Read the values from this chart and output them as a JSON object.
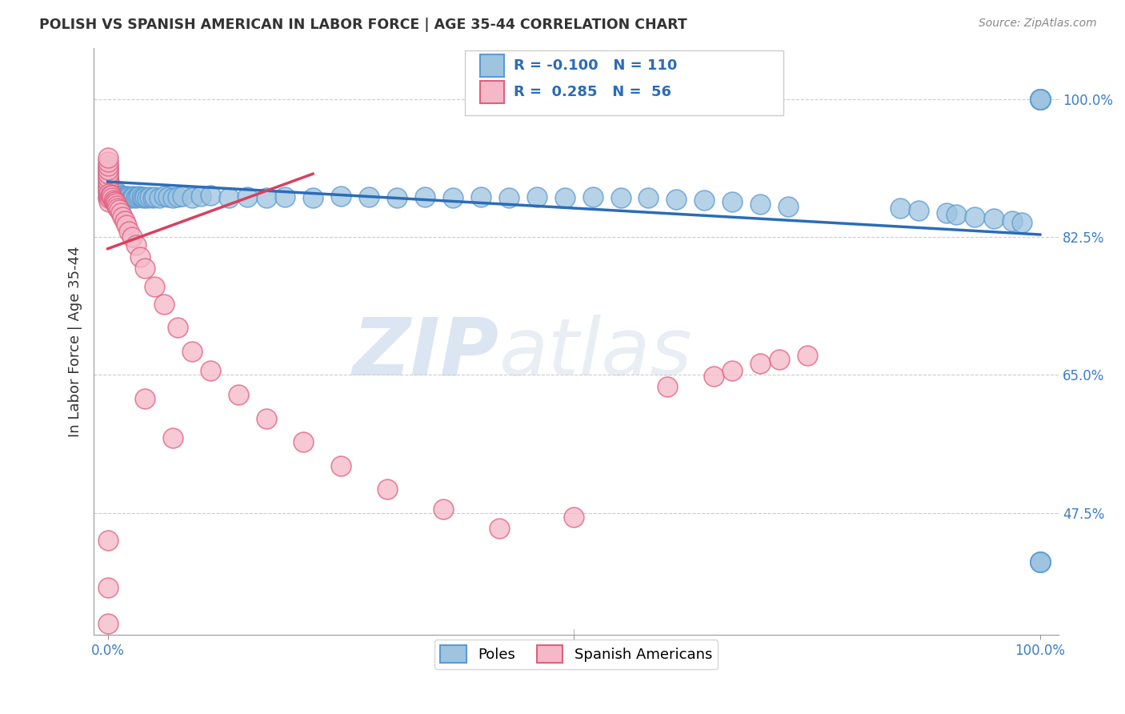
{
  "title": "POLISH VS SPANISH AMERICAN IN LABOR FORCE | AGE 35-44 CORRELATION CHART",
  "source": "Source: ZipAtlas.com",
  "ylabel": "In Labor Force | Age 35-44",
  "blue_color": "#9EC4E0",
  "blue_edge_color": "#5B9BD5",
  "pink_color": "#F5B8C8",
  "pink_edge_color": "#E06080",
  "blue_line_color": "#2B6CB8",
  "pink_line_color": "#D94060",
  "legend_R_blue": "-0.100",
  "legend_N_blue": "110",
  "legend_R_pink": "0.285",
  "legend_N_pink": "56",
  "legend_label_blue": "Poles",
  "legend_label_pink": "Spanish Americans",
  "watermark": "ZIPatlas",
  "blue_line_x0": 0.0,
  "blue_line_y0": 0.895,
  "blue_line_x1": 1.0,
  "blue_line_y1": 0.828,
  "pink_line_x0": 0.0,
  "pink_line_y0": 0.81,
  "pink_line_x1": 0.22,
  "pink_line_y1": 0.905,
  "xlim_min": -0.015,
  "xlim_max": 1.02,
  "ylim_min": 0.32,
  "ylim_max": 1.065,
  "ytick_vals": [
    0.475,
    0.65,
    0.825,
    1.0
  ],
  "ytick_labels": [
    "47.5%",
    "65.0%",
    "82.5%",
    "100.0%"
  ],
  "xtick_vals": [
    0.0,
    1.0
  ],
  "xtick_labels": [
    "0.0%",
    "100.0%"
  ],
  "blue_x": [
    0.0,
    0.0,
    0.0,
    0.0,
    0.0,
    0.0,
    0.0,
    0.0,
    0.001,
    0.001,
    0.001,
    0.001,
    0.002,
    0.002,
    0.003,
    0.003,
    0.004,
    0.004,
    0.005,
    0.005,
    0.006,
    0.007,
    0.007,
    0.008,
    0.008,
    0.009,
    0.009,
    0.01,
    0.01,
    0.011,
    0.012,
    0.013,
    0.014,
    0.015,
    0.016,
    0.017,
    0.018,
    0.019,
    0.02,
    0.021,
    0.022,
    0.023,
    0.025,
    0.027,
    0.028,
    0.03,
    0.032,
    0.034,
    0.036,
    0.038,
    0.04,
    0.042,
    0.045,
    0.048,
    0.05,
    0.055,
    0.06,
    0.065,
    0.07,
    0.075,
    0.08,
    0.09,
    0.1,
    0.11,
    0.13,
    0.15,
    0.17,
    0.19,
    0.22,
    0.25,
    0.28,
    0.31,
    0.34,
    0.37,
    0.4,
    0.43,
    0.46,
    0.49,
    0.52,
    0.55,
    0.58,
    0.61,
    0.64,
    0.67,
    0.7,
    0.73,
    0.85,
    0.87,
    0.9,
    0.91,
    0.93,
    0.95,
    0.97,
    0.98,
    1.0,
    1.0,
    1.0,
    1.0,
    1.0,
    1.0,
    1.0,
    1.0,
    1.0,
    1.0,
    1.0,
    1.0,
    1.0,
    1.0,
    1.0,
    1.0
  ],
  "blue_y": [
    0.875,
    0.882,
    0.888,
    0.893,
    0.9,
    0.905,
    0.91,
    0.915,
    0.875,
    0.882,
    0.888,
    0.895,
    0.878,
    0.885,
    0.875,
    0.883,
    0.875,
    0.882,
    0.875,
    0.88,
    0.877,
    0.875,
    0.88,
    0.875,
    0.882,
    0.875,
    0.88,
    0.875,
    0.882,
    0.875,
    0.877,
    0.875,
    0.878,
    0.875,
    0.877,
    0.875,
    0.876,
    0.877,
    0.876,
    0.877,
    0.875,
    0.876,
    0.875,
    0.877,
    0.876,
    0.875,
    0.876,
    0.877,
    0.876,
    0.875,
    0.876,
    0.875,
    0.876,
    0.875,
    0.876,
    0.875,
    0.877,
    0.876,
    0.875,
    0.876,
    0.877,
    0.875,
    0.877,
    0.878,
    0.875,
    0.876,
    0.875,
    0.876,
    0.875,
    0.877,
    0.876,
    0.875,
    0.876,
    0.875,
    0.876,
    0.875,
    0.876,
    0.875,
    0.876,
    0.875,
    0.875,
    0.873,
    0.872,
    0.87,
    0.867,
    0.864,
    0.862,
    0.858,
    0.855,
    0.853,
    0.85,
    0.848,
    0.845,
    0.843,
    1.0,
    1.0,
    1.0,
    1.0,
    1.0,
    1.0,
    1.0,
    1.0,
    1.0,
    1.0,
    0.413,
    0.413,
    0.413,
    0.413,
    0.413,
    0.413
  ],
  "pink_x": [
    0.0,
    0.0,
    0.0,
    0.0,
    0.0,
    0.0,
    0.0,
    0.0,
    0.0,
    0.0,
    0.001,
    0.001,
    0.002,
    0.003,
    0.004,
    0.005,
    0.006,
    0.007,
    0.008,
    0.009,
    0.01,
    0.011,
    0.012,
    0.014,
    0.016,
    0.018,
    0.02,
    0.023,
    0.026,
    0.03,
    0.035,
    0.04,
    0.05,
    0.06,
    0.075,
    0.09,
    0.11,
    0.14,
    0.17,
    0.21,
    0.25,
    0.3,
    0.36,
    0.42,
    0.5,
    0.6,
    0.65,
    0.67,
    0.7,
    0.72,
    0.75,
    0.0,
    0.0,
    0.0,
    0.04,
    0.07
  ],
  "pink_y": [
    0.875,
    0.882,
    0.888,
    0.895,
    0.9,
    0.905,
    0.91,
    0.915,
    0.92,
    0.925,
    0.87,
    0.88,
    0.875,
    0.878,
    0.878,
    0.875,
    0.872,
    0.87,
    0.87,
    0.868,
    0.865,
    0.862,
    0.86,
    0.855,
    0.85,
    0.845,
    0.84,
    0.832,
    0.825,
    0.815,
    0.8,
    0.785,
    0.762,
    0.74,
    0.71,
    0.68,
    0.655,
    0.625,
    0.595,
    0.565,
    0.535,
    0.505,
    0.48,
    0.455,
    0.47,
    0.635,
    0.648,
    0.655,
    0.665,
    0.67,
    0.675,
    0.44,
    0.38,
    0.335,
    0.62,
    0.57
  ]
}
